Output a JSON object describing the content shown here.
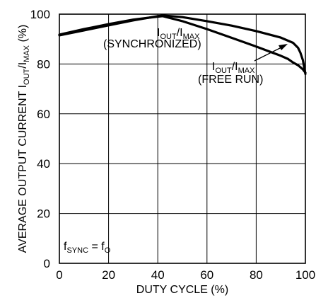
{
  "chart_data": {
    "type": "line",
    "xlabel": "DUTY CYCLE (%)",
    "ylabel": {
      "main": "AVERAGE OUTPUT CURRENT I",
      "sub1": "OUT",
      "slash": "/I",
      "sub2": "MAX",
      "unit": " (%)"
    },
    "xlim": [
      0,
      100
    ],
    "ylim": [
      0,
      100
    ],
    "x_ticks": [
      "0",
      "20",
      "40",
      "60",
      "80",
      "100"
    ],
    "y_ticks": [
      "0",
      "20",
      "40",
      "60",
      "80",
      "100"
    ],
    "grid": true,
    "series": [
      {
        "name": "IOUT/IMAX (SYNCHRONIZED)",
        "x": [
          0,
          10,
          20,
          30,
          40,
          42,
          50,
          60,
          70,
          80,
          90,
          95,
          97,
          98,
          99,
          100
        ],
        "y": [
          91.5,
          93.5,
          95.5,
          97.5,
          99.2,
          99.5,
          98.8,
          97.2,
          95.4,
          93.2,
          90.6,
          88.5,
          86.5,
          84.5,
          81.5,
          76
        ]
      },
      {
        "name": "IOUT/IMAX (FREE RUN)",
        "x": [
          0,
          10,
          20,
          30,
          40,
          42,
          50,
          60,
          70,
          80,
          90,
          93,
          95,
          97,
          98,
          99,
          100
        ],
        "y": [
          91.8,
          94,
          96,
          97.8,
          99,
          99.2,
          97.2,
          94,
          90.5,
          87,
          83.3,
          82,
          80.6,
          79.5,
          78.7,
          77.8,
          76.5
        ]
      }
    ],
    "annotations": {
      "sync": {
        "i1": "I",
        "s1": "OUT",
        "mid": "/I",
        "s2": "MAX",
        "label": "(SYNCHRONIZED)"
      },
      "free": {
        "i1": "I",
        "s1": "OUT",
        "mid": "/I",
        "s2": "MAX",
        "label": "(FREE RUN)"
      },
      "fsync": {
        "f1": "f",
        "s1": "SYNC",
        "eq": " = f",
        "s2": "O"
      }
    }
  }
}
